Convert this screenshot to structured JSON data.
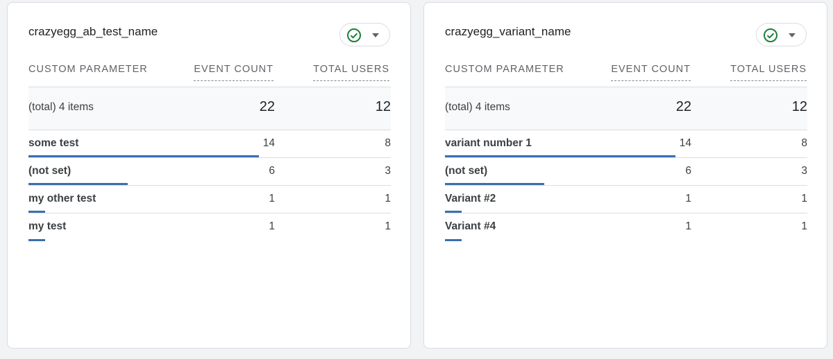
{
  "colors": {
    "bar": "#3a6fb0",
    "check": "#188038"
  },
  "icons": {
    "status": "check-circle-icon",
    "dropdown": "caret-down-icon"
  },
  "cards": [
    {
      "title": "crazyegg_ab_test_name",
      "columns": {
        "param": "CUSTOM PARAMETER",
        "events": "EVENT COUNT",
        "users": "TOTAL USERS"
      },
      "total": {
        "label": "(total) 4 items",
        "events": "22",
        "users": "12"
      },
      "rows": [
        {
          "label": "some test",
          "events": "14",
          "users": "8",
          "share": 0.636
        },
        {
          "label": "(not set)",
          "events": "6",
          "users": "3",
          "share": 0.273
        },
        {
          "label": "my other test",
          "events": "1",
          "users": "1",
          "share": 0.045
        },
        {
          "label": "my test",
          "events": "1",
          "users": "1",
          "share": 0.045
        }
      ]
    },
    {
      "title": "crazyegg_variant_name",
      "columns": {
        "param": "CUSTOM PARAMETER",
        "events": "EVENT COUNT",
        "users": "TOTAL USERS"
      },
      "total": {
        "label": "(total) 4 items",
        "events": "22",
        "users": "12"
      },
      "rows": [
        {
          "label": "variant number 1",
          "events": "14",
          "users": "8",
          "share": 0.636
        },
        {
          "label": "(not set)",
          "events": "6",
          "users": "3",
          "share": 0.273
        },
        {
          "label": "Variant #2",
          "events": "1",
          "users": "1",
          "share": 0.045
        },
        {
          "label": "Variant #4",
          "events": "1",
          "users": "1",
          "share": 0.045
        }
      ]
    }
  ]
}
